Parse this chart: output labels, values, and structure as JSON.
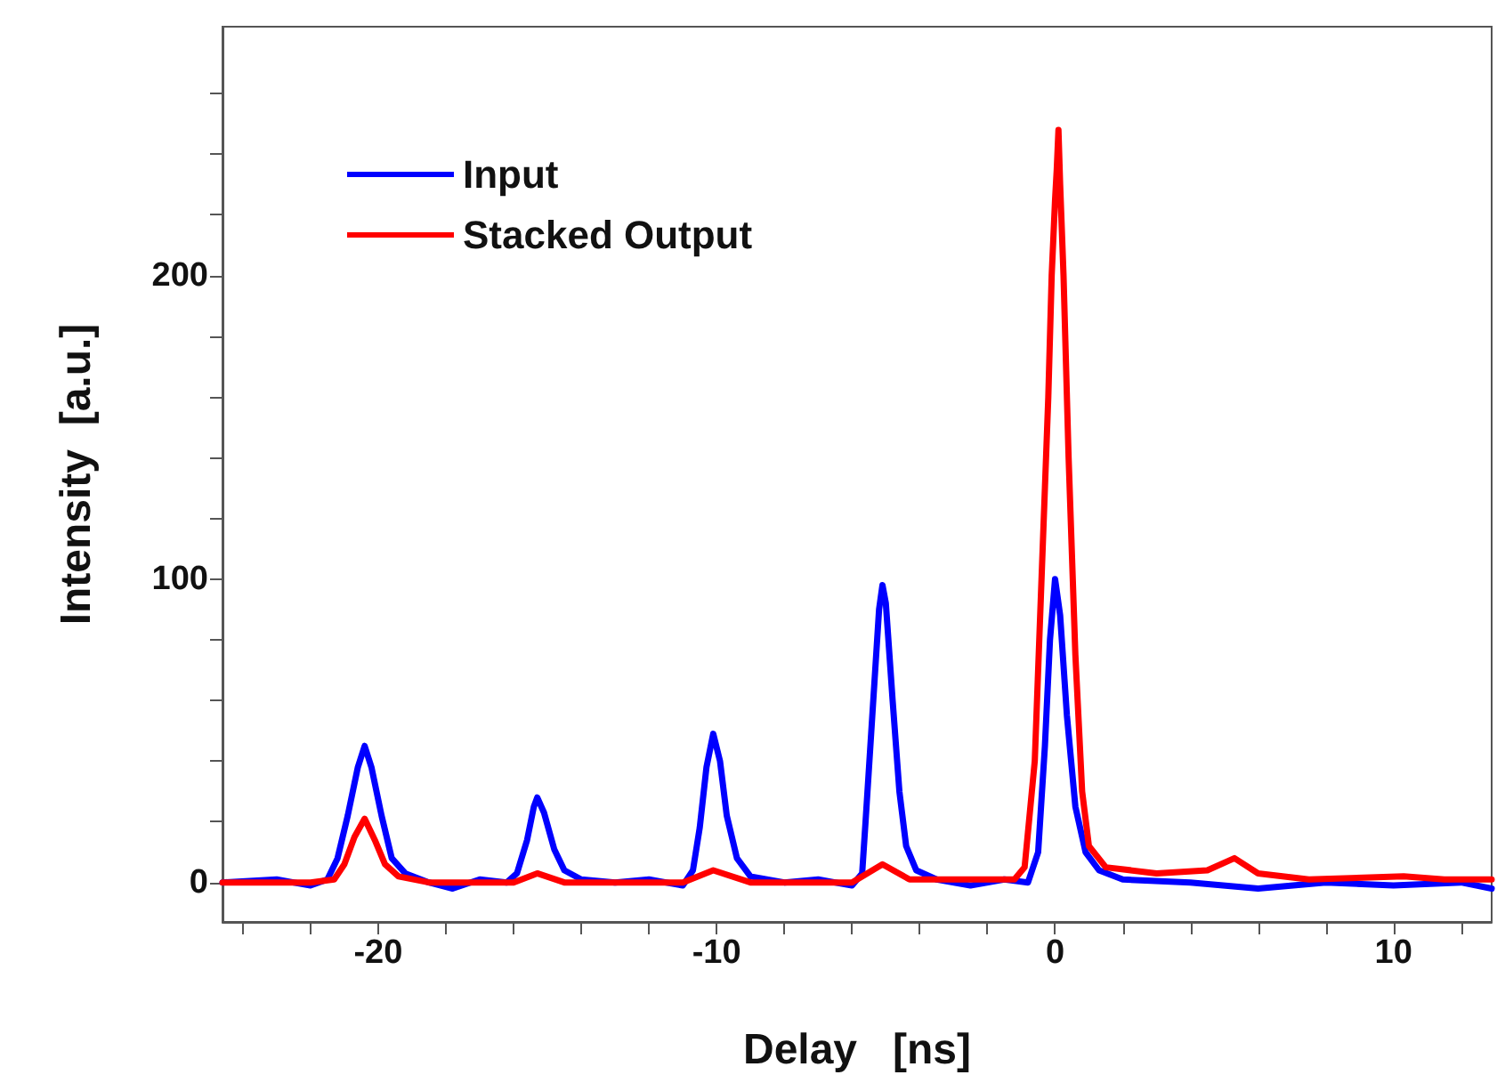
{
  "chart_data": {
    "type": "line",
    "xlabel": "Delay   [ns]",
    "ylabel": "Intensity  [a.u.]",
    "xlim": [
      -24.6,
      12.9
    ],
    "ylim": [
      -13,
      282
    ],
    "xticks": [
      {
        "value": -24,
        "label": null
      },
      {
        "value": -22,
        "label": null
      },
      -20,
      {
        "value": -18,
        "label": null
      },
      {
        "value": -16,
        "label": null
      },
      {
        "value": -14,
        "label": null
      },
      {
        "value": -12,
        "label": null
      },
      -10,
      {
        "value": -8,
        "label": null
      },
      {
        "value": -6,
        "label": null
      },
      {
        "value": -4,
        "label": null
      },
      {
        "value": -2,
        "label": null
      },
      0,
      {
        "value": 2,
        "label": null
      },
      {
        "value": 4,
        "label": null
      },
      {
        "value": 6,
        "label": null
      },
      {
        "value": 8,
        "label": null
      },
      10,
      {
        "value": 12,
        "label": null
      }
    ],
    "yticks": [
      0,
      {
        "value": 20,
        "label": null
      },
      {
        "value": 40,
        "label": null
      },
      {
        "value": 60,
        "label": null
      },
      {
        "value": 80,
        "label": null
      },
      100,
      {
        "value": 120,
        "label": null
      },
      {
        "value": 140,
        "label": null
      },
      {
        "value": 160,
        "label": null
      },
      {
        "value": 180,
        "label": null
      },
      200,
      {
        "value": 220,
        "label": null
      },
      {
        "value": 240,
        "label": null
      },
      {
        "value": 260,
        "label": null
      }
    ],
    "grid": false,
    "legend": "top left",
    "marker": "none",
    "line_style": "solid",
    "series": [
      {
        "name": "Input",
        "color": "#0000ff",
        "x": [
          -24.6,
          -23,
          -22,
          -21.5,
          -21.2,
          -20.9,
          -20.6,
          -20.4,
          -20.2,
          -19.9,
          -19.6,
          -19.2,
          -18.5,
          -17.8,
          -17,
          -16.2,
          -15.9,
          -15.6,
          -15.4,
          -15.3,
          -15.1,
          -14.8,
          -14.5,
          -14,
          -13,
          -12,
          -11,
          -10.7,
          -10.5,
          -10.3,
          -10.1,
          -9.9,
          -9.7,
          -9.4,
          -9,
          -8,
          -7,
          -6,
          -5.7,
          -5.6,
          -5.4,
          -5.2,
          -5.1,
          -5,
          -4.8,
          -4.6,
          -4.4,
          -4.1,
          -3.5,
          -2.5,
          -1.5,
          -0.8,
          -0.5,
          -0.3,
          -0.15,
          0,
          0.15,
          0.35,
          0.6,
          0.9,
          1.3,
          2,
          4,
          6,
          8,
          10,
          12,
          12.9
        ],
        "values": [
          0,
          1,
          -1,
          1,
          8,
          22,
          38,
          45,
          38,
          22,
          8,
          3,
          0,
          -2,
          1,
          0,
          3,
          14,
          25,
          28,
          23,
          11,
          4,
          1,
          0,
          1,
          -1,
          4,
          18,
          38,
          49,
          40,
          22,
          8,
          2,
          0,
          1,
          -1,
          3,
          20,
          55,
          90,
          98,
          92,
          60,
          30,
          12,
          4,
          1,
          -1,
          1,
          0,
          10,
          45,
          80,
          100,
          88,
          55,
          25,
          10,
          4,
          1,
          0,
          -2,
          0,
          -1,
          0,
          -2
        ]
      },
      {
        "name": "Stacked Output",
        "color": "#ff0000",
        "x": [
          -24.6,
          -22,
          -21.3,
          -21,
          -20.7,
          -20.4,
          -20.1,
          -19.8,
          -19.4,
          -18.5,
          -16,
          -15.3,
          -14.5,
          -11,
          -10.1,
          -9,
          -6,
          -5.1,
          -4.3,
          -1.2,
          -0.9,
          -0.6,
          -0.3,
          -0.2,
          -0.1,
          0,
          0.05,
          0.1,
          0.15,
          0.25,
          0.4,
          0.6,
          0.8,
          1,
          1.5,
          3,
          4.5,
          5.3,
          6,
          7.5,
          10.3,
          11.5,
          12.9
        ],
        "values": [
          0,
          0,
          1,
          6,
          15,
          21,
          14,
          6,
          2,
          0,
          0,
          3,
          0,
          0,
          4,
          0,
          0,
          6,
          1,
          1,
          5,
          40,
          130,
          160,
          200,
          225,
          235,
          248,
          230,
          200,
          140,
          75,
          30,
          12,
          5,
          3,
          4,
          8,
          3,
          1,
          2,
          1,
          1
        ]
      }
    ]
  }
}
